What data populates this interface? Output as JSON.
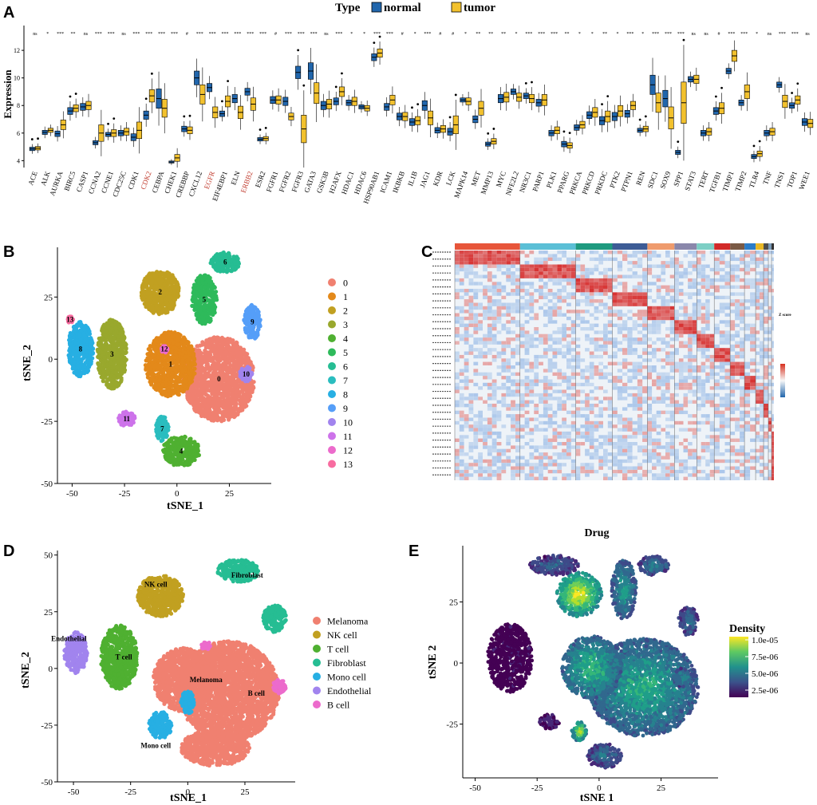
{
  "panelA": {
    "letter": "A",
    "type_label": "Type",
    "legend": [
      {
        "name": "normal",
        "color": "#2166ac"
      },
      {
        "name": "tumor",
        "color": "#f2c12e"
      }
    ],
    "ylabel": "Expression",
    "ylim": [
      3.5,
      13.8
    ],
    "yticks": [
      4,
      6,
      8,
      10,
      12
    ],
    "genes": [
      "ACE",
      "ALK",
      "AURKA",
      "BIRC5",
      "CASP1",
      "CCNA2",
      "CCNE1",
      "CDC25C",
      "CDK1",
      "CDK2",
      "CEBPA",
      "CHEK1",
      "CREBBP",
      "CXCL12",
      "EGFR",
      "EIF4EBP1",
      "ELN",
      "ERBB2",
      "ESR2",
      "FGFR1",
      "FGFR2",
      "FGFR3",
      "GATA3",
      "GSK3B",
      "H2AFX",
      "HDAC1",
      "HDAC6",
      "HSP90AB1",
      "ICAM1",
      "IKBKB",
      "IL1B",
      "JAG1",
      "KDR",
      "LCK",
      "MAPK14",
      "MET",
      "MMP13",
      "MYC",
      "NFE2L2",
      "NR3C1",
      "PARP1",
      "PLK1",
      "PPARG",
      "PRKCA",
      "PRKCD",
      "PRKDC",
      "PTK2",
      "PTPN1",
      "REN",
      "SDC1",
      "SOX9",
      "SPP1",
      "STAT3",
      "TERT",
      "TGFB1",
      "TIMP1",
      "TIMP2",
      "TLR4",
      "TNF",
      "TNS1",
      "TOP1",
      "WEE1"
    ],
    "highlight": [
      "CDK2",
      "EGFR",
      "ERBB2"
    ],
    "highlight_color": "#c0392b",
    "sig": [
      "ns",
      "*",
      "***",
      "**",
      "ns",
      "***",
      "***",
      "ns",
      "***",
      "***",
      "***",
      "***",
      "#",
      "***",
      "***",
      "***",
      "***",
      "***",
      "***",
      "#",
      "***",
      "***",
      "***",
      "ns",
      "***",
      "*",
      "*",
      "***",
      "***",
      "#",
      "*",
      "***",
      "#",
      "#",
      "*",
      "**",
      "**",
      "**",
      "*",
      "***",
      "***",
      "***",
      "**",
      "*",
      "*",
      "**",
      "*",
      "***",
      "*",
      "***",
      "***",
      "***",
      "ns",
      "ns",
      "#",
      "***",
      "***",
      "*",
      "ns",
      "***",
      "***",
      "ns"
    ],
    "normal_median": [
      4.85,
      6.05,
      5.95,
      7.6,
      7.9,
      5.3,
      5.9,
      6.0,
      5.7,
      7.3,
      8.5,
      3.9,
      6.3,
      10.0,
      9.3,
      7.4,
      8.5,
      9.0,
      5.55,
      8.4,
      8.3,
      10.4,
      10.5,
      8.0,
      8.3,
      8.2,
      7.9,
      11.5,
      7.9,
      7.2,
      6.8,
      8.0,
      6.2,
      6.1,
      8.4,
      7.0,
      5.2,
      8.5,
      9.0,
      8.7,
      8.2,
      6.0,
      5.2,
      6.4,
      7.3,
      6.9,
      7.2,
      7.4,
      6.2,
      9.5,
      8.5,
      4.6,
      9.9,
      6.0,
      7.6,
      10.5,
      8.2,
      4.3,
      6.0,
      9.5,
      8.0,
      6.8
    ],
    "tumor_median": [
      4.9,
      6.2,
      6.6,
      7.8,
      8.0,
      6.0,
      6.0,
      6.1,
      6.2,
      8.7,
      7.8,
      4.2,
      6.2,
      8.8,
      7.5,
      8.3,
      7.5,
      8.1,
      5.6,
      8.4,
      7.2,
      6.3,
      8.9,
      8.1,
      9.0,
      8.3,
      7.8,
      11.8,
      8.4,
      7.2,
      6.9,
      7.1,
      6.3,
      6.6,
      8.3,
      7.8,
      5.4,
      8.6,
      8.6,
      8.5,
      8.4,
      6.2,
      5.1,
      6.6,
      7.5,
      7.2,
      7.6,
      8.0,
      6.3,
      8.2,
      7.1,
      8.2,
      9.9,
      6.1,
      7.8,
      11.6,
      9.0,
      4.5,
      6.1,
      8.3,
      8.4,
      6.7
    ],
    "normal_iqr": [
      0.25,
      0.3,
      0.4,
      0.5,
      0.5,
      0.3,
      0.3,
      0.4,
      0.5,
      0.6,
      1.4,
      0.15,
      0.4,
      1.0,
      0.6,
      0.4,
      0.6,
      0.5,
      0.25,
      0.5,
      0.6,
      0.9,
      1.2,
      0.6,
      0.5,
      0.4,
      0.3,
      0.5,
      0.5,
      0.5,
      0.5,
      0.7,
      0.4,
      0.5,
      0.3,
      0.5,
      0.3,
      0.6,
      0.4,
      0.4,
      0.5,
      0.4,
      0.4,
      0.4,
      0.5,
      0.6,
      0.6,
      0.5,
      0.3,
      1.4,
      1.2,
      0.3,
      0.4,
      0.4,
      0.5,
      0.4,
      0.4,
      0.3,
      0.4,
      0.4,
      0.4,
      0.5
    ],
    "tumor_iqr": [
      0.25,
      0.3,
      0.7,
      0.5,
      0.6,
      1.2,
      0.5,
      0.5,
      1.2,
      0.9,
      1.3,
      0.5,
      0.5,
      1.4,
      0.8,
      0.8,
      0.9,
      0.9,
      0.3,
      0.6,
      0.5,
      2.0,
      1.5,
      0.7,
      0.7,
      0.6,
      0.4,
      0.6,
      0.7,
      0.6,
      0.6,
      1.0,
      0.5,
      1.3,
      0.5,
      1.0,
      0.4,
      0.7,
      0.6,
      0.6,
      0.8,
      0.5,
      0.4,
      0.5,
      0.7,
      0.8,
      0.8,
      0.6,
      0.4,
      1.4,
      1.6,
      3.0,
      0.6,
      0.5,
      0.8,
      0.8,
      1.0,
      0.4,
      0.5,
      0.9,
      0.6,
      0.6
    ]
  },
  "panelB": {
    "letter": "B",
    "xlabel": "tSNE_1",
    "ylabel": "tSNE_2",
    "xticks": [
      -50,
      -25,
      0,
      25
    ],
    "yticks": [
      25,
      0,
      -25,
      -50
    ],
    "xlim": [
      -57,
      45
    ],
    "ylim": [
      -50,
      45
    ],
    "clusters": [
      {
        "id": "0",
        "color": "#f08070",
        "center": [
          20,
          -8
        ],
        "rx": 17,
        "ry": 17
      },
      {
        "id": "1",
        "color": "#e3891a",
        "center": [
          -3,
          -2
        ],
        "rx": 12,
        "ry": 13
      },
      {
        "id": "2",
        "color": "#c1a021",
        "center": [
          -8,
          27
        ],
        "rx": 9,
        "ry": 9
      },
      {
        "id": "3",
        "color": "#99a82d",
        "center": [
          -31,
          2
        ],
        "rx": 7,
        "ry": 14
      },
      {
        "id": "4",
        "color": "#4fb031",
        "center": [
          2,
          -37
        ],
        "rx": 9,
        "ry": 6
      },
      {
        "id": "5",
        "color": "#2eba5b",
        "center": [
          13,
          24
        ],
        "rx": 6,
        "ry": 10
      },
      {
        "id": "6",
        "color": "#26bd93",
        "center": [
          23,
          39
        ],
        "rx": 7,
        "ry": 4
      },
      {
        "id": "7",
        "color": "#2abdbf",
        "center": [
          -7,
          -28
        ],
        "rx": 3,
        "ry": 5
      },
      {
        "id": "8",
        "color": "#27afe3",
        "center": [
          -46,
          4
        ],
        "rx": 6,
        "ry": 11
      },
      {
        "id": "9",
        "color": "#559ef8",
        "center": [
          36,
          15
        ],
        "rx": 4,
        "ry": 7
      },
      {
        "id": "10",
        "color": "#a184ee",
        "center": [
          33,
          -6
        ],
        "rx": 3,
        "ry": 3
      },
      {
        "id": "11",
        "color": "#cd73ea",
        "center": [
          -24,
          -24
        ],
        "rx": 4,
        "ry": 3
      },
      {
        "id": "12",
        "color": "#ec6bcc",
        "center": [
          -6,
          4
        ],
        "rx": 1.5,
        "ry": 1.5
      },
      {
        "id": "13",
        "color": "#f86ca0",
        "center": [
          -51,
          16
        ],
        "rx": 1.5,
        "ry": 1.5
      }
    ]
  },
  "panelC": {
    "letter": "C",
    "type": "heatmap",
    "legend_title": "Z score",
    "group_colors": [
      "#e7553a",
      "#5bbfd6",
      "#1f9a7f",
      "#3d5c96",
      "#ef9b6d",
      "#8a87ab",
      "#7dcfc5",
      "#d22a28",
      "#7a5a45",
      "#2b7cc8",
      "#e9b826",
      "#4d4d4d",
      "#7a9ab8",
      "#333333"
    ],
    "group_widths": [
      82,
      70,
      46,
      44,
      34,
      28,
      22,
      20,
      18,
      14,
      10,
      6,
      4,
      3
    ]
  },
  "panelD": {
    "letter": "D",
    "xlabel": "tSNE_1",
    "ylabel": "tSNE_2",
    "xticks": [
      -50,
      -25,
      0,
      25
    ],
    "yticks": [
      50,
      25,
      0,
      -25,
      -50
    ],
    "cell_types": [
      {
        "name": "Melanoma",
        "color": "#f08070"
      },
      {
        "name": "NK cell",
        "color": "#c1a021"
      },
      {
        "name": "T cell",
        "color": "#4fb031"
      },
      {
        "name": "Fibroblast",
        "color": "#26bd93"
      },
      {
        "name": "Mono cell",
        "color": "#27afe3"
      },
      {
        "name": "Endothelial",
        "color": "#a184ee"
      },
      {
        "name": "B cell",
        "color": "#ec6bcc"
      }
    ],
    "labels": [
      {
        "text": "NK cell"
      },
      {
        "text": "Fibroblast"
      },
      {
        "text": "Endothelial"
      },
      {
        "text": "T cell"
      },
      {
        "text": "Melanoma"
      },
      {
        "text": "B cell"
      },
      {
        "text": "Mono cell"
      }
    ]
  },
  "panelE": {
    "letter": "E",
    "title": "Drug",
    "xlabel": "tSNE 1",
    "ylabel": "tSNE 2",
    "xticks": [
      -50,
      -25,
      0,
      25
    ],
    "yticks": [
      25,
      0,
      -25
    ],
    "legend_title": "Density",
    "legend_ticks": [
      "1.0e-05",
      "7.5e-06",
      "5.0e-06",
      "2.5e-06"
    ]
  }
}
